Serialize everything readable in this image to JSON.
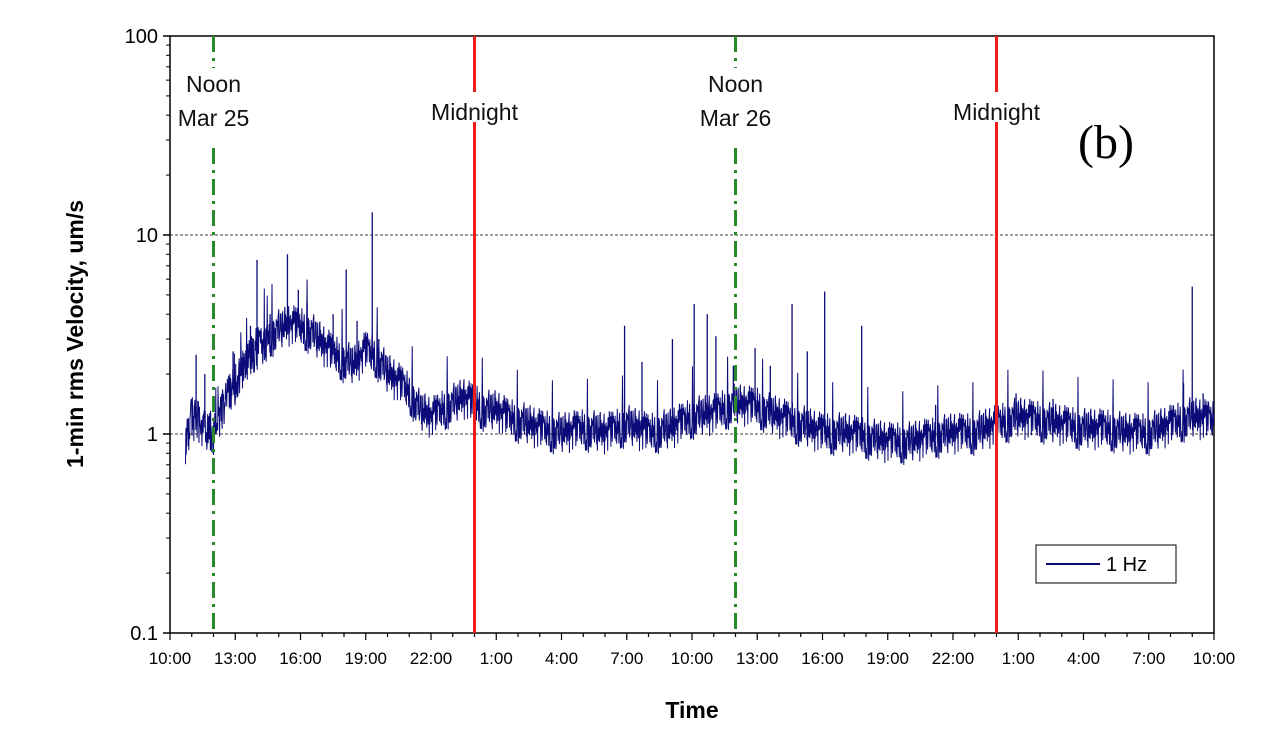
{
  "chart_data": {
    "type": "line",
    "xlabel": "Time",
    "ylabel": "1-min rms Velocity, um/s",
    "panel_label": "(b)",
    "y_scale": "log",
    "ylim": [
      0.1,
      100
    ],
    "y_ticks": [
      "0.1",
      "1",
      "10",
      "100"
    ],
    "y_gridlines": [
      1,
      10
    ],
    "x_unit": "hours",
    "xlim": [
      10,
      58
    ],
    "x_ticks": [
      {
        "x": 10,
        "label": "10:00"
      },
      {
        "x": 13,
        "label": "13:00"
      },
      {
        "x": 16,
        "label": "16:00"
      },
      {
        "x": 19,
        "label": "19:00"
      },
      {
        "x": 22,
        "label": "22:00"
      },
      {
        "x": 25,
        "label": "1:00"
      },
      {
        "x": 28,
        "label": "4:00"
      },
      {
        "x": 31,
        "label": "7:00"
      },
      {
        "x": 34,
        "label": "10:00"
      },
      {
        "x": 37,
        "label": "13:00"
      },
      {
        "x": 40,
        "label": "16:00"
      },
      {
        "x": 43,
        "label": "19:00"
      },
      {
        "x": 46,
        "label": "22:00"
      },
      {
        "x": 49,
        "label": "1:00"
      },
      {
        "x": 52,
        "label": "4:00"
      },
      {
        "x": 55,
        "label": "7:00"
      },
      {
        "x": 58,
        "label": "10:00"
      }
    ],
    "markers": [
      {
        "x": 12,
        "lines": [
          "Noon",
          "Mar 25"
        ],
        "style": "dashdot",
        "color": "#2a8a2a"
      },
      {
        "x": 24,
        "lines": [
          "Midnight"
        ],
        "style": "solid",
        "color": "#ee1c1c"
      },
      {
        "x": 36,
        "lines": [
          "Noon",
          "Mar 26"
        ],
        "style": "dashdot",
        "color": "#2a8a2a"
      },
      {
        "x": 48,
        "lines": [
          "Midnight"
        ],
        "style": "solid",
        "color": "#ee1c1c"
      }
    ],
    "series": [
      {
        "name": "1 Hz",
        "color": "#0a0a78",
        "x": [
          10.7,
          11.0,
          11.5,
          12.0,
          12.5,
          13.0,
          13.5,
          14.0,
          14.5,
          15.0,
          15.5,
          16.0,
          16.5,
          17.0,
          17.5,
          18.0,
          18.5,
          19.0,
          19.5,
          20.0,
          20.5,
          21.0,
          21.5,
          22.0,
          22.5,
          23.0,
          23.5,
          24.0,
          24.5,
          25.0,
          25.5,
          26.0,
          26.5,
          27.0,
          28.0,
          29.0,
          30.0,
          31.0,
          32.0,
          33.0,
          34.0,
          35.0,
          36.0,
          37.0,
          38.0,
          39.0,
          40.0,
          41.0,
          42.0,
          43.0,
          44.0,
          45.0,
          46.0,
          47.0,
          48.0,
          49.0,
          50.0,
          51.0,
          52.0,
          53.0,
          54.0,
          55.0,
          56.0,
          57.0,
          58.0
        ],
        "y": [
          0.9,
          1.2,
          1.1,
          1.0,
          1.4,
          1.8,
          2.3,
          2.7,
          3.0,
          3.3,
          3.5,
          3.4,
          3.2,
          2.8,
          2.5,
          2.3,
          2.2,
          2.6,
          2.4,
          2.0,
          1.8,
          1.6,
          1.3,
          1.2,
          1.3,
          1.4,
          1.5,
          1.4,
          1.3,
          1.3,
          1.2,
          1.15,
          1.1,
          1.05,
          1.0,
          1.05,
          1.0,
          1.1,
          1.0,
          1.05,
          1.2,
          1.25,
          1.4,
          1.35,
          1.2,
          1.1,
          1.0,
          1.0,
          0.95,
          0.9,
          0.9,
          0.95,
          1.0,
          1.0,
          1.1,
          1.2,
          1.15,
          1.1,
          1.05,
          1.05,
          1.0,
          1.0,
          1.1,
          1.2,
          1.15
        ]
      }
    ],
    "spikes": [
      {
        "x": 11.2,
        "y": 2.5
      },
      {
        "x": 11.6,
        "y": 2.0
      },
      {
        "x": 12.9,
        "y": 2.6
      },
      {
        "x": 13.7,
        "y": 3.5
      },
      {
        "x": 14.0,
        "y": 7.5
      },
      {
        "x": 14.6,
        "y": 4.0
      },
      {
        "x": 15.4,
        "y": 8.0
      },
      {
        "x": 15.9,
        "y": 5.3
      },
      {
        "x": 16.3,
        "y": 4.6
      },
      {
        "x": 17.5,
        "y": 4.0
      },
      {
        "x": 18.1,
        "y": 6.7
      },
      {
        "x": 18.6,
        "y": 3.7
      },
      {
        "x": 19.0,
        "y": 3.2
      },
      {
        "x": 19.3,
        "y": 13.0
      },
      {
        "x": 19.6,
        "y": 3.0
      },
      {
        "x": 20.6,
        "y": 2.0
      },
      {
        "x": 30.9,
        "y": 3.5
      },
      {
        "x": 31.7,
        "y": 2.3
      },
      {
        "x": 33.1,
        "y": 3.0
      },
      {
        "x": 34.1,
        "y": 4.5
      },
      {
        "x": 34.7,
        "y": 4.0
      },
      {
        "x": 35.1,
        "y": 3.1
      },
      {
        "x": 35.9,
        "y": 2.2
      },
      {
        "x": 36.9,
        "y": 2.7
      },
      {
        "x": 37.6,
        "y": 2.2
      },
      {
        "x": 38.6,
        "y": 4.5
      },
      {
        "x": 39.3,
        "y": 2.6
      },
      {
        "x": 40.1,
        "y": 5.2
      },
      {
        "x": 41.8,
        "y": 3.5
      },
      {
        "x": 45.2,
        "y": 1.4
      },
      {
        "x": 48.9,
        "y": 1.6
      },
      {
        "x": 50.6,
        "y": 1.5
      },
      {
        "x": 56.6,
        "y": 1.8
      },
      {
        "x": 57.0,
        "y": 5.5
      },
      {
        "x": 57.5,
        "y": 1.6
      }
    ],
    "legend_position": "bottom-right"
  }
}
